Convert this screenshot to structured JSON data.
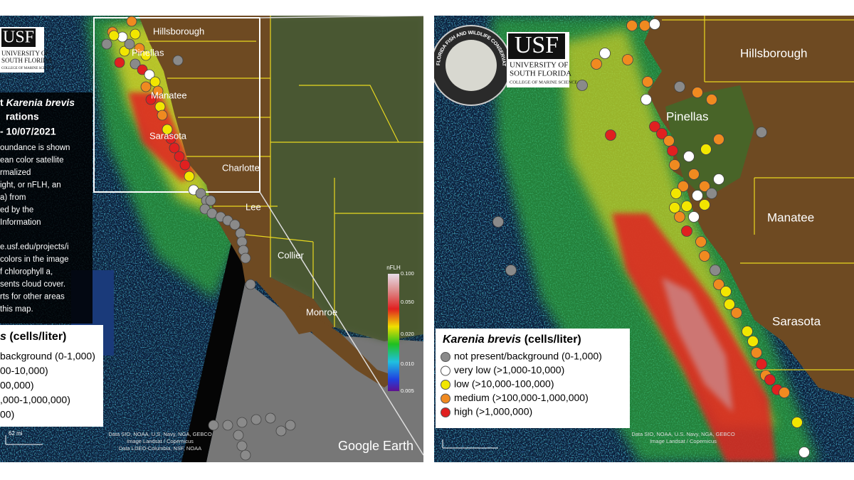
{
  "left_panel": {
    "logo": {
      "mark": "USF",
      "lines": [
        "UNIVERSITY OF",
        "SOUTH FLORIDA",
        "COLLEGE OF MARINE SCIENCE"
      ]
    },
    "title": {
      "prefix": "t ",
      "species": "Karenia brevis",
      "lines": [
        "rations",
        "- 10/07/2021"
      ]
    },
    "description": [
      "oundance is shown",
      "ean color satellite",
      "rmalized",
      "ight, or nFLH, an",
      "a) from",
      "ed by the",
      "Information",
      "e.usf.edu/projects/i",
      "colors in the image",
      "f chlorophyll a,",
      "sents cloud cover.",
      "rts for other areas",
      "this map."
    ],
    "legend": {
      "title_species": "s",
      "title_unit": " (cells/liter)",
      "items": [
        "background (0-1,000)",
        "00-10,000)",
        "00,000)",
        ",000-1,000,000)",
        "00)"
      ]
    },
    "counties": [
      "Hillsborough",
      "Pinellas",
      "Manatee",
      "Sarasota",
      "Charlotte",
      "Lee",
      "Collier",
      "Monroe"
    ],
    "colorbar": {
      "title": "nFLH",
      "ticks": [
        "0.100",
        "0.050",
        "0.020",
        "0.010",
        "0.005"
      ]
    },
    "attribution": [
      "Data SIO, NOAA, U.S. Navy, NGA, GEBCO",
      "Image Landsat / Copernicus",
      "Data LDEO-Columbia, NSF, NOAA"
    ],
    "scale": "62 mi",
    "brand": "Google Earth"
  },
  "right_panel": {
    "fwc_logo": "FLORIDA FISH AND WILDLIFE CONSERVATION COMMISSION",
    "logo": {
      "mark": "USF",
      "lines": [
        "UNIVERSITY OF",
        "SOUTH FLORIDA",
        "COLLEGE OF MARINE SCIENCE"
      ]
    },
    "counties": [
      "Hillsborough",
      "Pinellas",
      "Manatee",
      "Sarasota"
    ],
    "legend": {
      "title_species": "Karenia brevis",
      "title_unit": " (cells/liter)",
      "items": [
        "not present/background (0-1,000)",
        "very low (>1,000-10,000)",
        "low (>10,000-100,000)",
        "medium (>100,000-1,000,000)",
        "high (>1,000,000)"
      ]
    },
    "attribution": [
      "Data SIO, NOAA, U.S. Navy, NGA, GEBCO",
      "Image Landsat / Copernicus"
    ]
  }
}
